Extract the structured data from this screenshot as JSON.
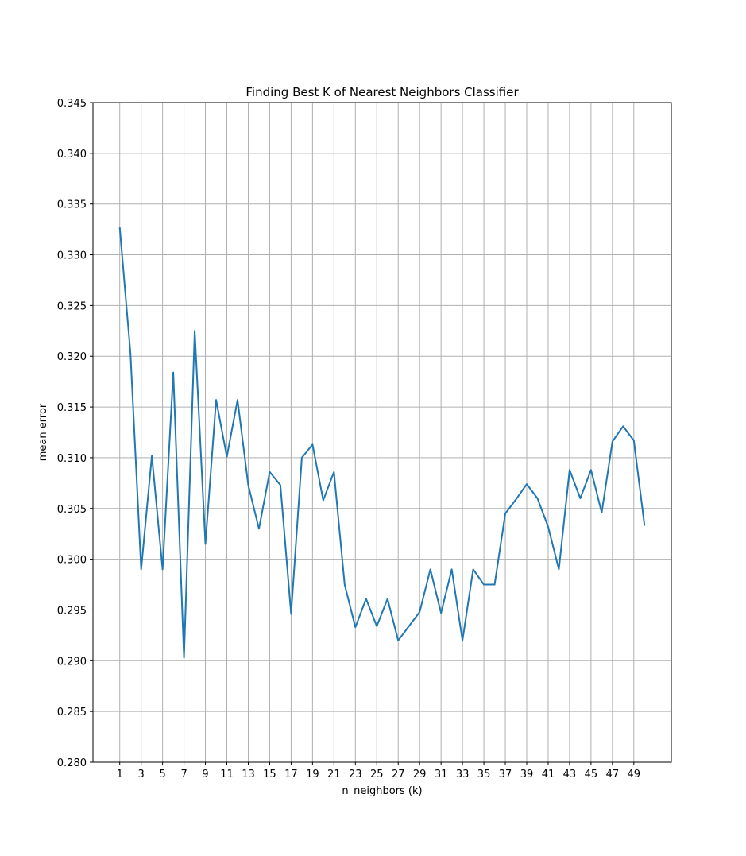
{
  "chart_data": {
    "type": "line",
    "title": "Finding Best K of Nearest Neighbors Classifier",
    "xlabel": "n_neighbors (k)",
    "ylabel": "mean error",
    "xlim": [
      -1.5,
      52.5
    ],
    "ylim": [
      0.28,
      0.345
    ],
    "x_ticks": [
      1,
      3,
      5,
      7,
      9,
      11,
      13,
      15,
      17,
      19,
      21,
      23,
      25,
      27,
      29,
      31,
      33,
      35,
      37,
      39,
      41,
      43,
      45,
      47,
      49
    ],
    "y_ticks": [
      0.28,
      0.285,
      0.29,
      0.295,
      0.3,
      0.305,
      0.31,
      0.315,
      0.32,
      0.325,
      0.33,
      0.335,
      0.34,
      0.345
    ],
    "y_tick_labels": [
      "0.280",
      "0.285",
      "0.290",
      "0.295",
      "0.300",
      "0.305",
      "0.310",
      "0.315",
      "0.320",
      "0.325",
      "0.330",
      "0.335",
      "0.340",
      "0.345"
    ],
    "grid": true,
    "series": [
      {
        "color": "#1f77b4",
        "x": [
          1,
          2,
          3,
          4,
          5,
          6,
          7,
          8,
          9,
          10,
          11,
          12,
          13,
          14,
          15,
          16,
          17,
          18,
          19,
          20,
          21,
          22,
          23,
          24,
          25,
          26,
          27,
          28,
          29,
          30,
          31,
          32,
          33,
          34,
          35,
          36,
          37,
          38,
          39,
          40,
          41,
          42,
          43,
          44,
          45,
          46,
          47,
          48,
          49,
          50
        ],
        "values": [
          0.3327,
          0.3203,
          0.299,
          0.3102,
          0.299,
          0.3184,
          0.2903,
          0.3225,
          0.3015,
          0.3157,
          0.3101,
          0.3157,
          0.3073,
          0.303,
          0.3086,
          0.3073,
          0.2946,
          0.31,
          0.3113,
          0.3058,
          0.3086,
          0.2975,
          0.2933,
          0.2961,
          0.2934,
          0.2961,
          0.292,
          0.2934,
          0.2948,
          0.299,
          0.2947,
          0.299,
          0.292,
          0.299,
          0.2975,
          0.2975,
          0.3045,
          0.3059,
          0.3074,
          0.306,
          0.3032,
          0.299,
          0.3088,
          0.306,
          0.3088,
          0.3046,
          0.3116,
          0.3131,
          0.3117,
          0.3033
        ]
      }
    ]
  }
}
